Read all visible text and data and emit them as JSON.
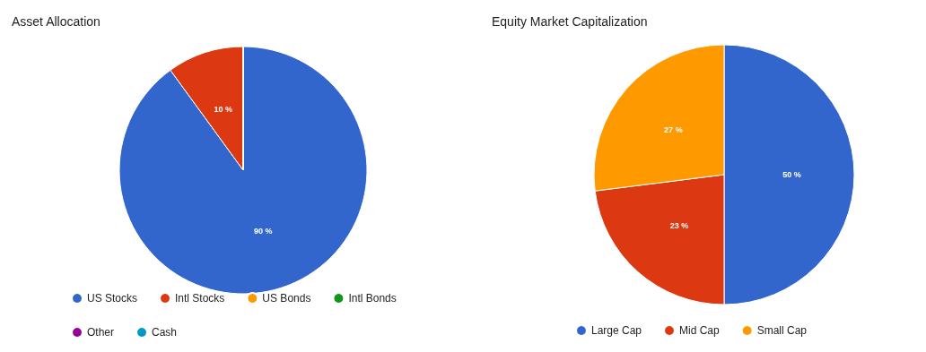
{
  "chart_data": [
    {
      "type": "pie",
      "title": "Asset Allocation",
      "categories": [
        "US Stocks",
        "Intl Stocks",
        "US Bonds",
        "Intl Bonds",
        "Other",
        "Cash"
      ],
      "values": [
        90,
        10,
        0,
        0,
        0,
        0
      ],
      "colors": [
        "#3366cc",
        "#dc3912",
        "#ff9900",
        "#109618",
        "#990099",
        "#0099c6"
      ],
      "value_labels": [
        "90 %",
        "10 %",
        null,
        null,
        null,
        null
      ],
      "legend": "bottom"
    },
    {
      "type": "pie",
      "title": "Equity Market Capitalization",
      "categories": [
        "Large Cap",
        "Mid Cap",
        "Small Cap"
      ],
      "values": [
        50,
        23,
        27
      ],
      "colors": [
        "#3366cc",
        "#dc3912",
        "#ff9900"
      ],
      "value_labels": [
        "50 %",
        "23 %",
        "27 %"
      ],
      "legend": "bottom"
    }
  ]
}
